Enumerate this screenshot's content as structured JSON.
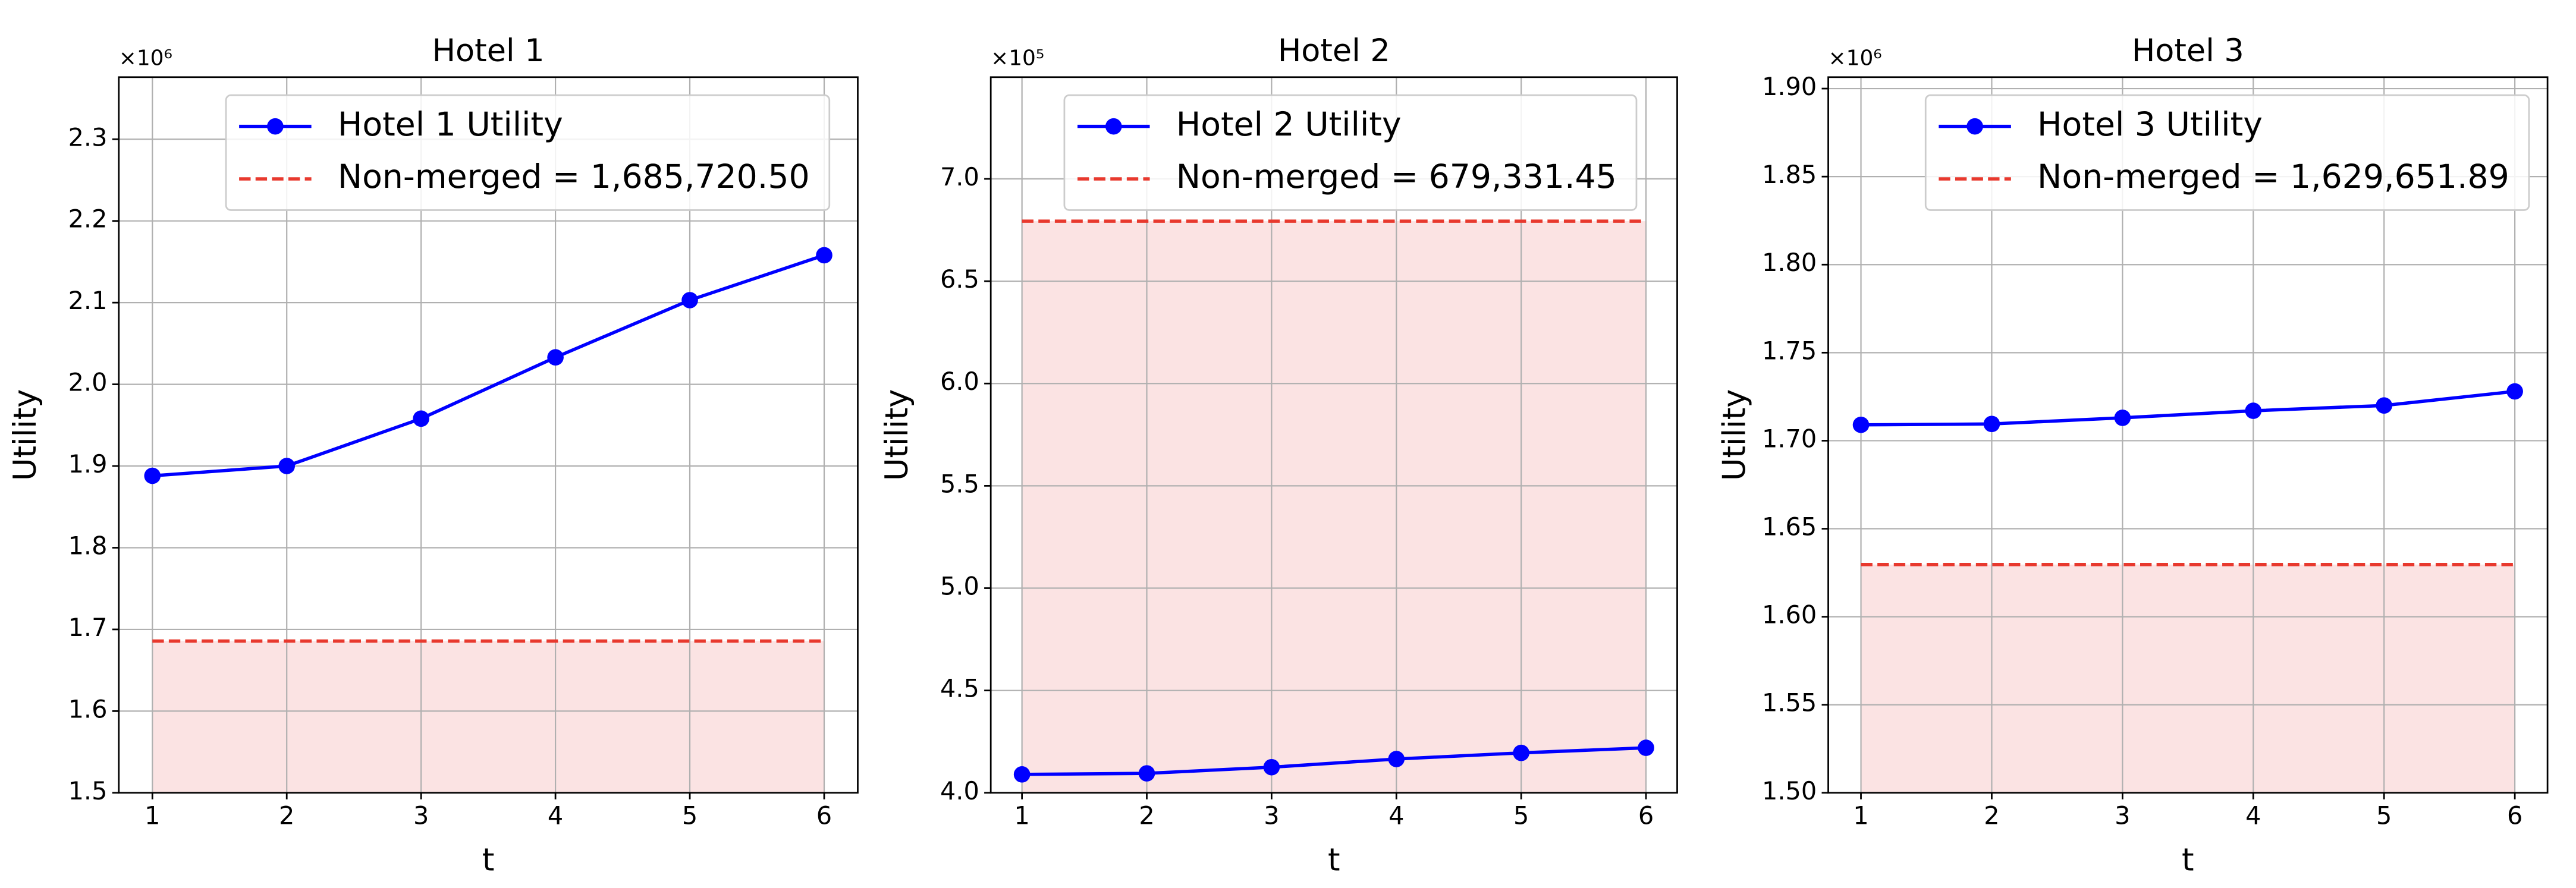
{
  "chart_data": [
    {
      "type": "line",
      "title": "Hotel 1",
      "x_label": "t",
      "y_label": "Utility",
      "y_offset_label": "×10⁶",
      "x": [
        1,
        2,
        3,
        4,
        5,
        6
      ],
      "series": [
        {
          "name": "Hotel 1 Utility",
          "color": "#0000ff",
          "values": [
            1888000,
            1900000,
            1958000,
            2033000,
            2103000,
            2158000
          ]
        }
      ],
      "reference": {
        "name": "Non-merged = 1,685,720.50",
        "value": 1685720.5,
        "color": "#e8392e",
        "fill_color": "#fbe3e3"
      },
      "xlim": [
        0.75,
        6.25
      ],
      "xticks": [
        1,
        2,
        3,
        4,
        5,
        6
      ],
      "ylim": [
        1500000,
        2376000
      ],
      "yticks": [
        {
          "value": 1500000,
          "label": "1.5"
        },
        {
          "value": 1600000,
          "label": "1.6"
        },
        {
          "value": 1700000,
          "label": "1.7"
        },
        {
          "value": 1800000,
          "label": "1.8"
        },
        {
          "value": 1900000,
          "label": "1.9"
        },
        {
          "value": 2000000,
          "label": "2.0"
        },
        {
          "value": 2100000,
          "label": "2.1"
        },
        {
          "value": 2200000,
          "label": "2.2"
        },
        {
          "value": 2300000,
          "label": "2.3"
        }
      ],
      "grid": true,
      "legend": "upper center"
    },
    {
      "type": "line",
      "title": "Hotel 2",
      "x_label": "t",
      "y_label": "Utility",
      "y_offset_label": "×10⁵",
      "x": [
        1,
        2,
        3,
        4,
        5,
        6
      ],
      "series": [
        {
          "name": "Hotel 2 Utility",
          "color": "#0000ff",
          "values": [
            409000,
            409500,
            412500,
            416500,
            419500,
            422000
          ]
        }
      ],
      "reference": {
        "name": "Non-merged = 679,331.45",
        "value": 679331.45,
        "color": "#e8392e",
        "fill_color": "#fbe3e3"
      },
      "xlim": [
        0.75,
        6.25
      ],
      "xticks": [
        1,
        2,
        3,
        4,
        5,
        6
      ],
      "ylim": [
        400000,
        749700
      ],
      "yticks": [
        {
          "value": 400000,
          "label": "4.0"
        },
        {
          "value": 450000,
          "label": "4.5"
        },
        {
          "value": 500000,
          "label": "5.0"
        },
        {
          "value": 550000,
          "label": "5.5"
        },
        {
          "value": 600000,
          "label": "6.0"
        },
        {
          "value": 650000,
          "label": "6.5"
        },
        {
          "value": 700000,
          "label": "7.0"
        }
      ],
      "grid": true,
      "legend": "upper center"
    },
    {
      "type": "line",
      "title": "Hotel 3",
      "x_label": "t",
      "y_label": "Utility",
      "y_offset_label": "×10⁶",
      "x": [
        1,
        2,
        3,
        4,
        5,
        6
      ],
      "series": [
        {
          "name": "Hotel 3 Utility",
          "color": "#0000ff",
          "values": [
            1709000,
            1709500,
            1713000,
            1717000,
            1720000,
            1728000
          ]
        }
      ],
      "reference": {
        "name": "Non-merged = 1,629,651.89",
        "value": 1629651.89,
        "color": "#e8392e",
        "fill_color": "#fbe3e3"
      },
      "xlim": [
        0.75,
        6.25
      ],
      "xticks": [
        1,
        2,
        3,
        4,
        5,
        6
      ],
      "ylim": [
        1500000,
        1906500
      ],
      "yticks": [
        {
          "value": 1500000,
          "label": "1.50"
        },
        {
          "value": 1550000,
          "label": "1.55"
        },
        {
          "value": 1600000,
          "label": "1.60"
        },
        {
          "value": 1650000,
          "label": "1.65"
        },
        {
          "value": 1700000,
          "label": "1.70"
        },
        {
          "value": 1750000,
          "label": "1.75"
        },
        {
          "value": 1800000,
          "label": "1.80"
        },
        {
          "value": 1850000,
          "label": "1.85"
        },
        {
          "value": 1900000,
          "label": "1.90"
        }
      ],
      "grid": true,
      "legend": "upper center"
    }
  ]
}
